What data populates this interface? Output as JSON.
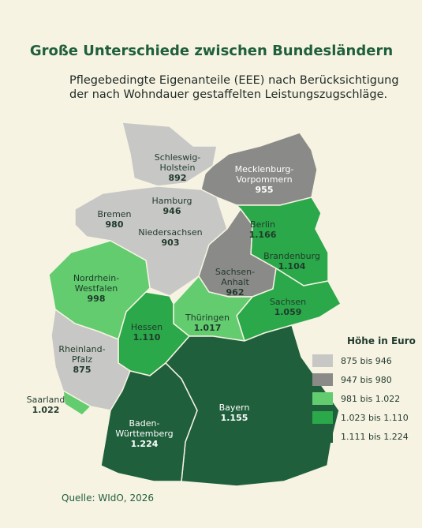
{
  "title": "Große Unterschiede zwischen Bundesländern",
  "subtitle_lines": [
    "Pflegebedingte Eigenanteile (EEE) nach Berücksichtigung",
    "der nach Wohndauer gestaffelten Leistungszugschläge."
  ],
  "regions": [
    {
      "name_lines": [
        "Schleswig-",
        "Holstein"
      ],
      "value": "892",
      "color": "#c7c7c5"
    },
    {
      "name_lines": [
        "Mecklenburg-",
        "Vorpommern"
      ],
      "value": "955",
      "color": "#8a8a88"
    },
    {
      "name_lines": [
        "Hamburg"
      ],
      "value": "946",
      "color": "#c7c7c5"
    },
    {
      "name_lines": [
        "Bremen"
      ],
      "value": "980",
      "color": "#8a8a88"
    },
    {
      "name_lines": [
        "Niedersachsen"
      ],
      "value": "903",
      "color": "#c7c7c5"
    },
    {
      "name_lines": [
        "Berlin"
      ],
      "value": "1.166",
      "color": "#1f5f3c"
    },
    {
      "name_lines": [
        "Brandenburg"
      ],
      "value": "1.104",
      "color": "#2ba84a"
    },
    {
      "name_lines": [
        "Sachsen-",
        "Anhalt"
      ],
      "value": "962",
      "color": "#8a8a88"
    },
    {
      "name_lines": [
        "Nordrhein-",
        "Westfalen"
      ],
      "value": "998",
      "color": "#62cc6f"
    },
    {
      "name_lines": [
        "Sachsen"
      ],
      "value": "1.059",
      "color": "#2ba84a"
    },
    {
      "name_lines": [
        "Thüringen"
      ],
      "value": "1.017",
      "color": "#62cc6f"
    },
    {
      "name_lines": [
        "Hessen"
      ],
      "value": "1.110",
      "color": "#2ba84a"
    },
    {
      "name_lines": [
        "Rheinland-",
        "Pfalz"
      ],
      "value": "875",
      "color": "#c7c7c5"
    },
    {
      "name_lines": [
        "Saarland"
      ],
      "value": "1.022",
      "color": "#62cc6f"
    },
    {
      "name_lines": [
        "Bayern"
      ],
      "value": "1.155",
      "color": "#1f5f3c"
    },
    {
      "name_lines": [
        "Baden-",
        "Württemberg"
      ],
      "value": "1.224",
      "color": "#1f5f3c"
    }
  ],
  "legend": {
    "title": "Höhe in Euro",
    "items": [
      {
        "label": "875 bis 946",
        "color": "#c7c7c5"
      },
      {
        "label": "947 bis 980",
        "color": "#8a8a88"
      },
      {
        "label": "981 bis 1.022",
        "color": "#62cc6f"
      },
      {
        "label": "1.023 bis 1.110",
        "color": "#2ba84a"
      },
      {
        "label": "1.111 bis 1.224",
        "color": "#1f5f3c"
      }
    ]
  },
  "source": "Quelle: WIdO, 2026"
}
